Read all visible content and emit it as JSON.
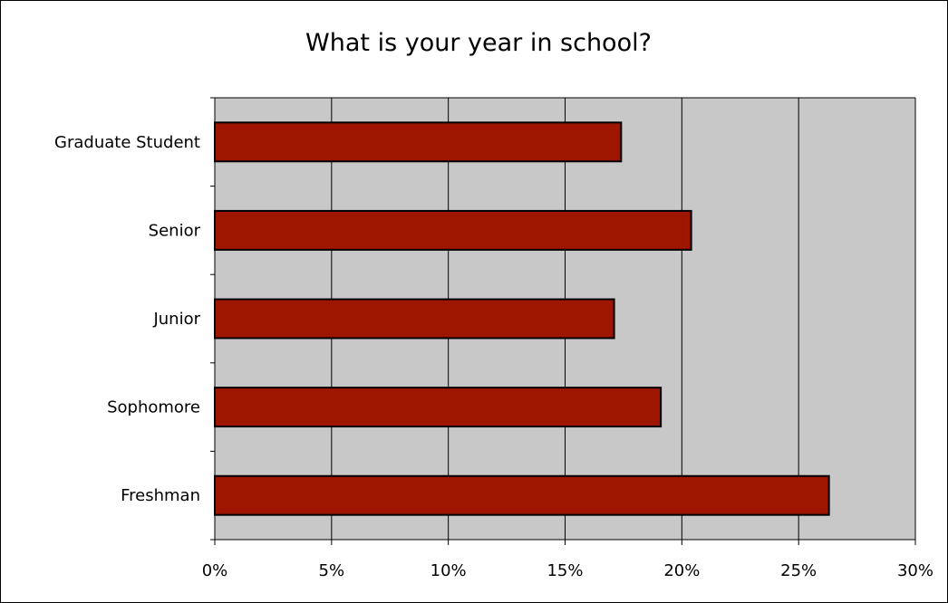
{
  "chart_data": {
    "type": "bar",
    "orientation": "horizontal",
    "title": "What is your year in school?",
    "xlabel": "",
    "ylabel": "",
    "categories": [
      "Graduate Student",
      "Senior",
      "Junior",
      "Sophomore",
      "Freshman"
    ],
    "values": [
      17.4,
      20.4,
      17.1,
      19.1,
      26.3
    ],
    "xlim": [
      0,
      30
    ],
    "x_ticks": [
      "0%",
      "5%",
      "10%",
      "15%",
      "20%",
      "25%",
      "30%"
    ],
    "value_unit": "%",
    "grid": "vertical",
    "legend": "none",
    "colors": {
      "bar_fill": "#9e1500",
      "bar_stroke": "#000000",
      "plot_background": "#c8c8c8",
      "gridline": "#000000",
      "frame": "#000000"
    }
  }
}
